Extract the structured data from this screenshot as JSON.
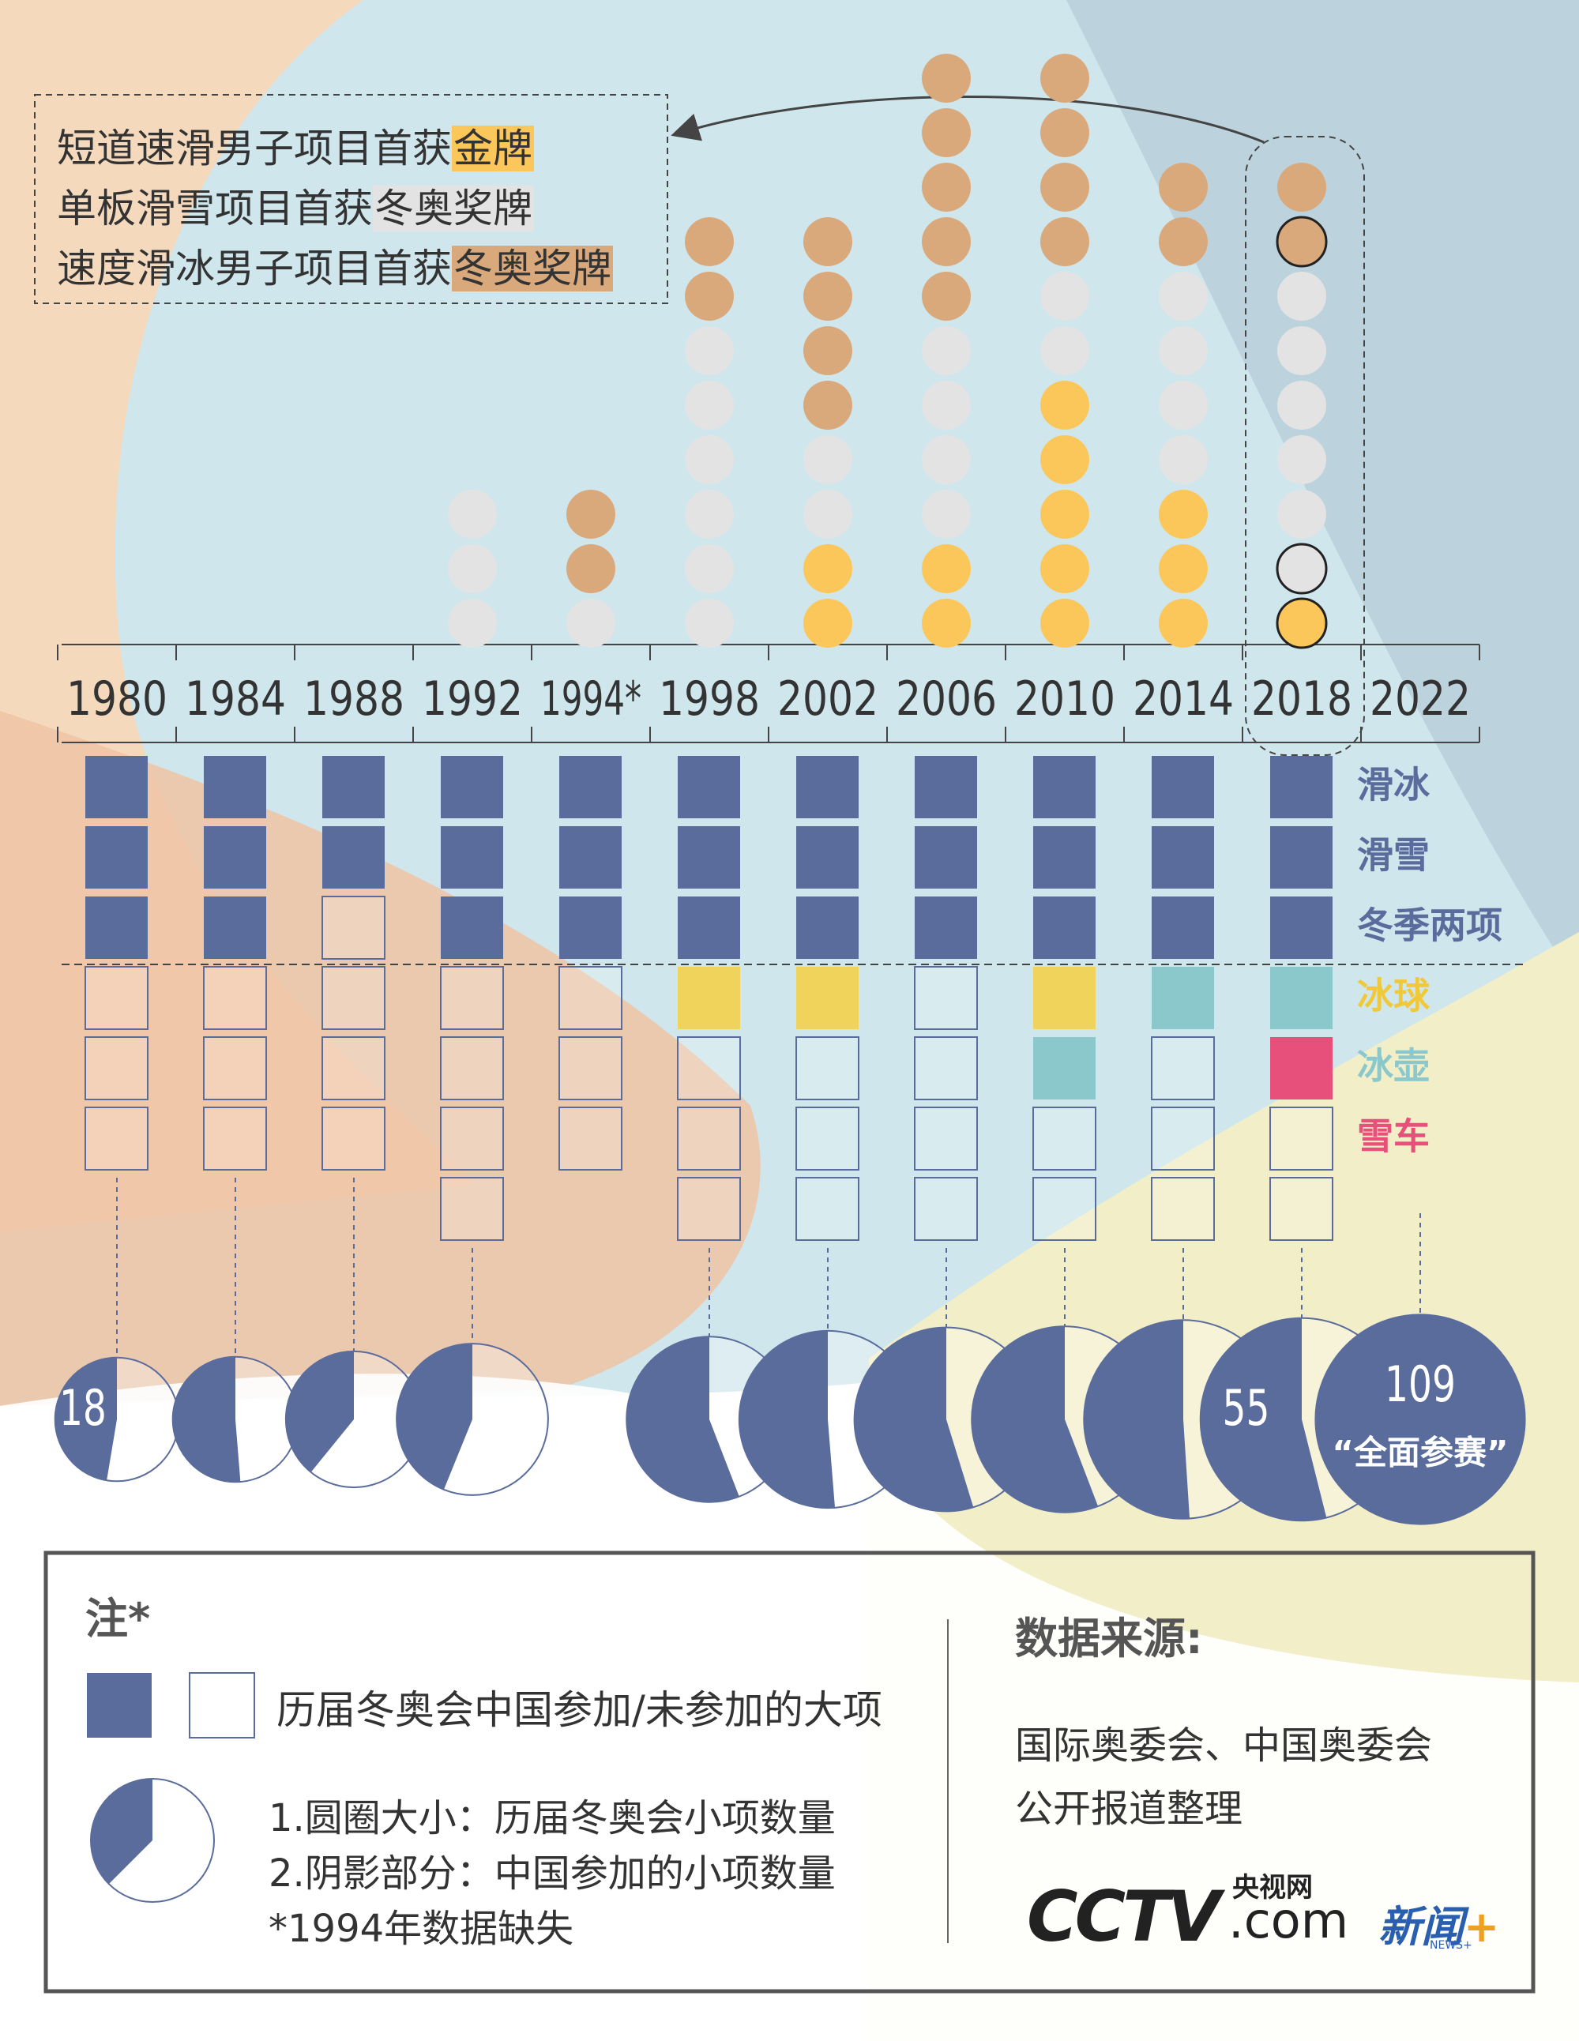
{
  "annotation": {
    "lines": [
      {
        "text": "短道速滑男子项目首获",
        "highlight": "金牌",
        "medal": "gold"
      },
      {
        "text": "单板滑雪项目首获",
        "highlight": "冬奥奖牌",
        "medal": "silver"
      },
      {
        "text": "速度滑冰男子项目首获",
        "highlight": "冬奥奖牌",
        "medal": "bronze"
      }
    ]
  },
  "years": [
    "1980",
    "1984",
    "1988",
    "1992",
    "1994*",
    "1998",
    "2002",
    "2006",
    "2010",
    "2014",
    "2018",
    "2022"
  ],
  "highlight_year": "2018",
  "medals": {
    "colors": {
      "gold": "#fcc75a",
      "silver": "#e3e3e3",
      "bronze": "#d9a97c"
    },
    "gold": [
      0,
      0,
      0,
      0,
      0,
      0,
      2,
      2,
      5,
      3,
      1,
      null
    ],
    "silver": [
      0,
      0,
      0,
      3,
      1,
      6,
      2,
      4,
      2,
      4,
      6,
      null
    ],
    "bronze": [
      0,
      0,
      0,
      0,
      2,
      2,
      4,
      5,
      4,
      2,
      2,
      null
    ]
  },
  "sports": {
    "names": [
      "滑冰",
      "滑雪",
      "冬季两项",
      "冰球",
      "冰壶",
      "雪车"
    ],
    "colors": [
      "#5a6c9c",
      "#5a6c9c",
      "#5a6c9c",
      "#f0c93a",
      "#8ac8cc",
      "#e8507c"
    ]
  },
  "participation": [
    [
      "#5a6c9c",
      "#5a6c9c",
      "#5a6c9c",
      null,
      null,
      null
    ],
    [
      "#5a6c9c",
      "#5a6c9c",
      "#5a6c9c",
      null,
      null,
      null
    ],
    [
      "#5a6c9c",
      "#5a6c9c",
      null,
      null,
      null,
      null
    ],
    [
      "#5a6c9c",
      "#5a6c9c",
      "#5a6c9c",
      null,
      null,
      null,
      null
    ],
    [
      "#5a6c9c",
      "#5a6c9c",
      "#5a6c9c",
      null,
      null,
      null
    ],
    [
      "#5a6c9c",
      "#5a6c9c",
      "#5a6c9c",
      "#f0d35a",
      null,
      null,
      null
    ],
    [
      "#5a6c9c",
      "#5a6c9c",
      "#5a6c9c",
      "#f0d35a",
      null,
      null,
      null
    ],
    [
      "#5a6c9c",
      "#5a6c9c",
      "#5a6c9c",
      null,
      null,
      null,
      null
    ],
    [
      "#5a6c9c",
      "#5a6c9c",
      "#5a6c9c",
      "#f0d35a",
      "#8ac8cc",
      null,
      null
    ],
    [
      "#5a6c9c",
      "#5a6c9c",
      "#5a6c9c",
      "#8ac8cc",
      null,
      null,
      null
    ],
    [
      "#5a6c9c",
      "#5a6c9c",
      "#5a6c9c",
      "#8ac8cc",
      "#e8507c",
      null,
      null
    ],
    []
  ],
  "events": [
    38,
    39,
    46,
    57,
    null,
    68,
    78,
    84,
    86,
    98,
    102,
    109
  ],
  "china": [
    18,
    20,
    18,
    25,
    null,
    38,
    40,
    46,
    48,
    50,
    55,
    109
  ],
  "value_labels": [
    "18",
    null,
    null,
    null,
    null,
    null,
    null,
    null,
    null,
    null,
    "55",
    "109"
  ],
  "full_note": "“全面参赛”",
  "notes": {
    "title": "注*",
    "legend_sports": "历届冬奥会中国参加/未参加的大项",
    "legend_circle": [
      "1.圆圈大小：历届冬奥会小项数量",
      "2.阴影部分：中国参加的小项数量",
      "*1994年数据缺失"
    ],
    "source_title": "数据来源:",
    "source": [
      "国际奥委会、中国奥委会",
      "公开报道整理"
    ]
  },
  "logo": {
    "cctv": "CCTV",
    "com": ".com",
    "site": "央视网",
    "news": "新闻",
    "plus": "+",
    "news_en": "NEWS+"
  }
}
